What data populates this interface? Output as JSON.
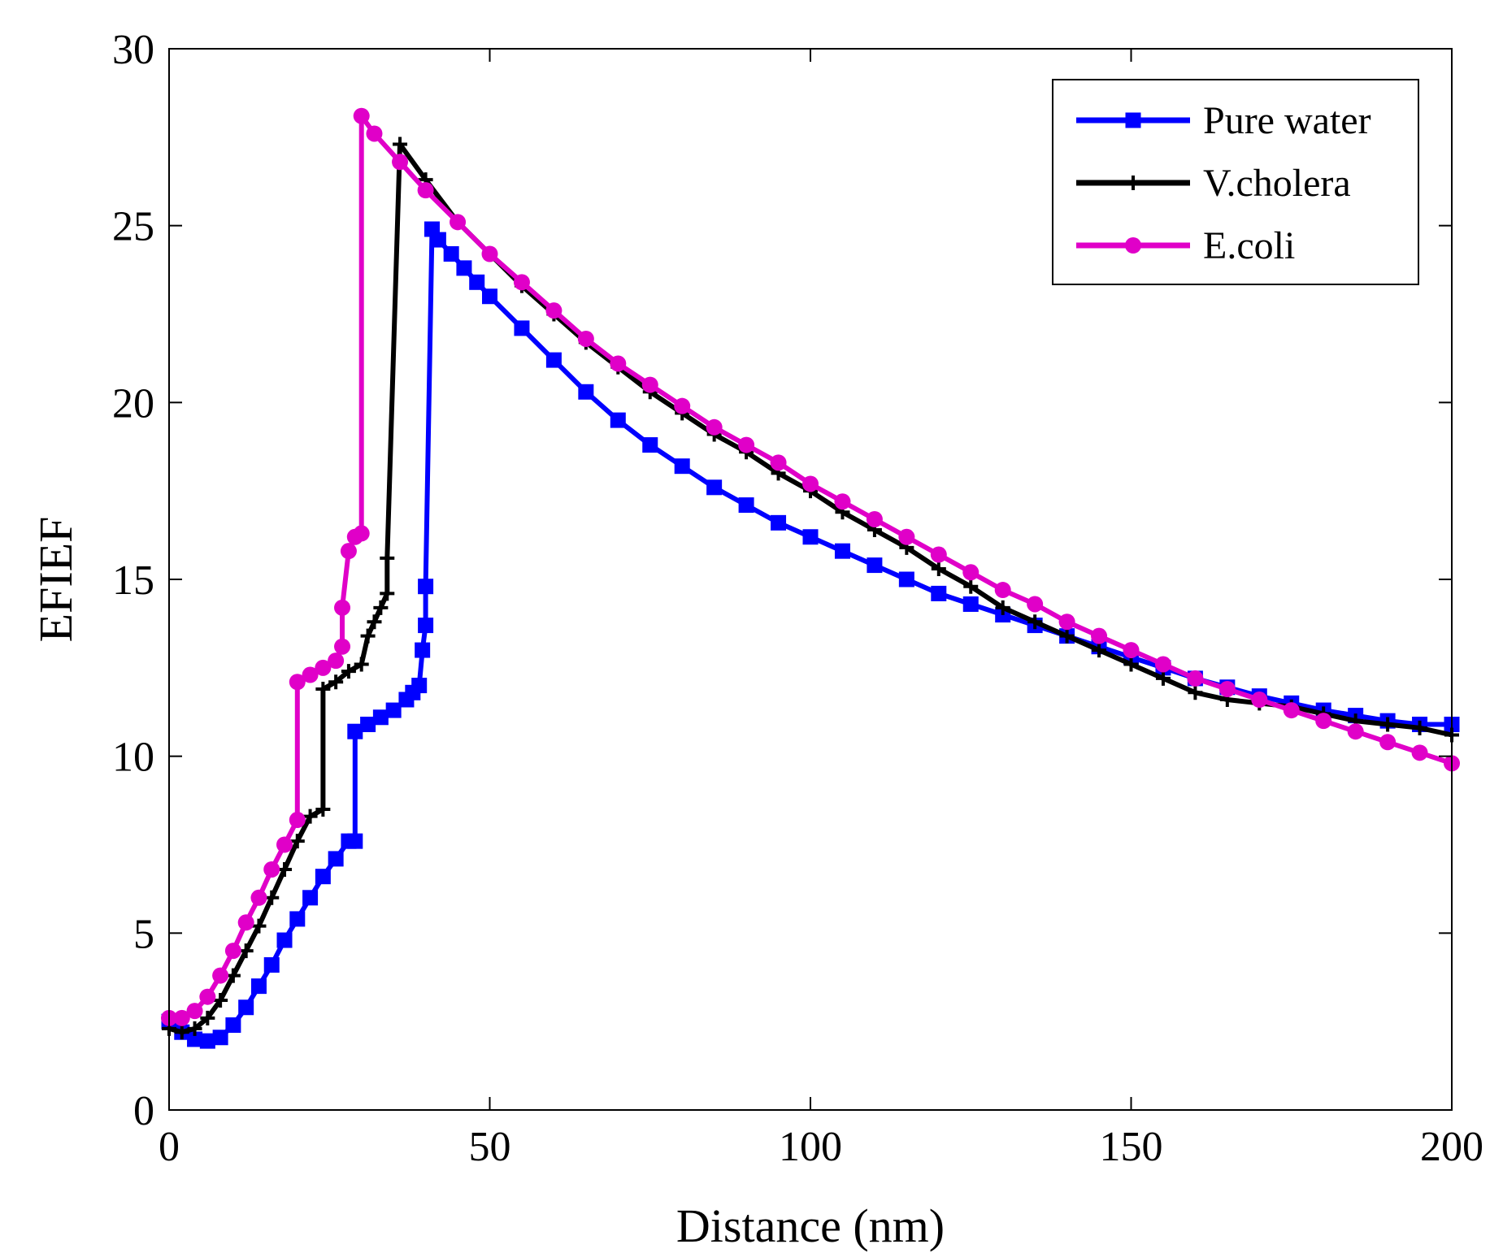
{
  "chart_data": {
    "type": "line",
    "title": "",
    "xlabel": "Distance (nm)",
    "ylabel": "EFIEF",
    "xlim": [
      0,
      200
    ],
    "ylim": [
      0,
      30
    ],
    "xticks": [
      0,
      50,
      100,
      150,
      200
    ],
    "yticks": [
      0,
      5,
      10,
      15,
      20,
      25,
      30
    ],
    "grid": false,
    "legend_position": "top-right",
    "series": [
      {
        "name": "Pure water",
        "color": "#0000ff",
        "marker": "square",
        "x": [
          0,
          2,
          4,
          6,
          8,
          10,
          12,
          14,
          16,
          18,
          20,
          22,
          24,
          26,
          28,
          29,
          29,
          31,
          33,
          35,
          37,
          38,
          39,
          39.5,
          40,
          40,
          41,
          42,
          44,
          46,
          48,
          50,
          55,
          60,
          65,
          70,
          75,
          80,
          85,
          90,
          95,
          100,
          105,
          110,
          115,
          120,
          125,
          130,
          135,
          140,
          145,
          150,
          155,
          160,
          165,
          170,
          175,
          180,
          185,
          190,
          195,
          200
        ],
        "y": [
          2.5,
          2.2,
          2.0,
          1.95,
          2.05,
          2.4,
          2.9,
          3.5,
          4.1,
          4.8,
          5.4,
          6.0,
          6.6,
          7.1,
          7.6,
          7.6,
          10.7,
          10.9,
          11.1,
          11.3,
          11.6,
          11.8,
          12.0,
          13.0,
          13.7,
          14.8,
          24.9,
          24.6,
          24.2,
          23.8,
          23.4,
          23.0,
          22.1,
          21.2,
          20.3,
          19.5,
          18.8,
          18.2,
          17.6,
          17.1,
          16.6,
          16.2,
          15.8,
          15.4,
          15.0,
          14.6,
          14.3,
          14.0,
          13.7,
          13.4,
          13.1,
          12.8,
          12.5,
          12.2,
          11.95,
          11.7,
          11.5,
          11.3,
          11.15,
          11.0,
          10.9,
          10.9
        ]
      },
      {
        "name": "V.cholera",
        "color": "#000000",
        "marker": "plus",
        "x": [
          0,
          2,
          4,
          6,
          8,
          10,
          12,
          14,
          16,
          18,
          20,
          22,
          24,
          24,
          26,
          28,
          30,
          31,
          32,
          33,
          34,
          34,
          36,
          40,
          45,
          50,
          55,
          60,
          65,
          70,
          75,
          80,
          85,
          90,
          95,
          100,
          105,
          110,
          115,
          120,
          125,
          130,
          135,
          140,
          145,
          150,
          155,
          160,
          165,
          170,
          175,
          180,
          185,
          190,
          195,
          200
        ],
        "y": [
          2.3,
          2.2,
          2.3,
          2.6,
          3.1,
          3.8,
          4.5,
          5.2,
          6.0,
          6.8,
          7.6,
          8.3,
          8.5,
          11.9,
          12.1,
          12.4,
          12.6,
          13.4,
          13.8,
          14.2,
          14.6,
          15.6,
          27.3,
          26.3,
          25.1,
          24.2,
          23.3,
          22.5,
          21.7,
          21.0,
          20.3,
          19.7,
          19.1,
          18.6,
          18.0,
          17.5,
          16.9,
          16.4,
          15.9,
          15.3,
          14.8,
          14.2,
          13.8,
          13.4,
          13.0,
          12.6,
          12.2,
          11.8,
          11.6,
          11.5,
          11.4,
          11.2,
          11.0,
          10.9,
          10.8,
          10.6
        ]
      },
      {
        "name": "E.coli",
        "color": "#e000c8",
        "marker": "circle",
        "x": [
          0,
          2,
          4,
          6,
          8,
          10,
          12,
          14,
          16,
          18,
          20,
          20,
          22,
          24,
          26,
          27,
          27,
          28,
          29,
          30,
          30,
          32,
          36,
          40,
          45,
          50,
          55,
          60,
          65,
          70,
          75,
          80,
          85,
          90,
          95,
          100,
          105,
          110,
          115,
          120,
          125,
          130,
          135,
          140,
          145,
          150,
          155,
          160,
          165,
          170,
          175,
          180,
          185,
          190,
          195,
          200
        ],
        "y": [
          2.6,
          2.6,
          2.8,
          3.2,
          3.8,
          4.5,
          5.3,
          6.0,
          6.8,
          7.5,
          8.2,
          12.1,
          12.3,
          12.5,
          12.7,
          13.1,
          14.2,
          15.8,
          16.2,
          16.3,
          28.1,
          27.6,
          26.8,
          26.0,
          25.1,
          24.2,
          23.4,
          22.6,
          21.8,
          21.1,
          20.5,
          19.9,
          19.3,
          18.8,
          18.3,
          17.7,
          17.2,
          16.7,
          16.2,
          15.7,
          15.2,
          14.7,
          14.3,
          13.8,
          13.4,
          13.0,
          12.6,
          12.2,
          11.9,
          11.6,
          11.3,
          11.0,
          10.7,
          10.4,
          10.1,
          9.8
        ]
      }
    ]
  }
}
